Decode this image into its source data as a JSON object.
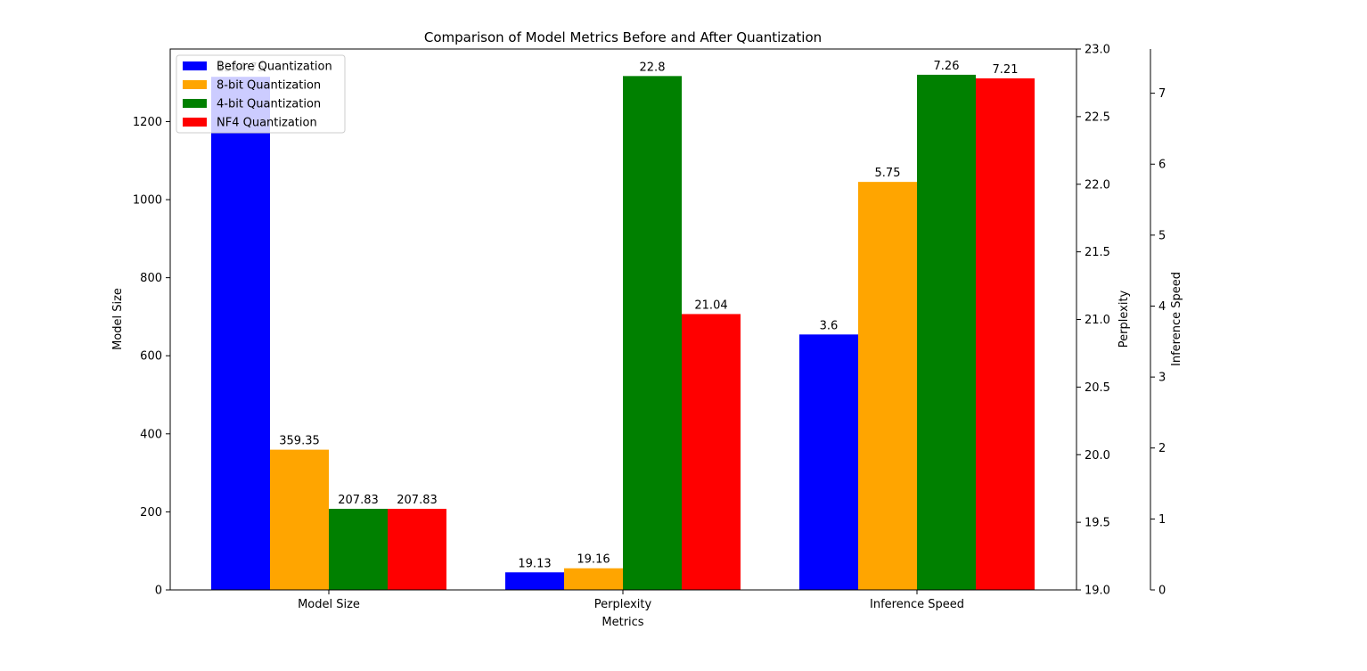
{
  "chart_data": {
    "type": "bar",
    "title": "Comparison of Model Metrics Before and After Quantization",
    "xlabel": "Metrics",
    "categories": [
      "Model Size",
      "Perplexity",
      "Inference Speed"
    ],
    "series": [
      {
        "name": "Before Quantization",
        "color": "#0000ff",
        "values": [
          1314.75,
          19.13,
          3.6
        ],
        "labels": [
          "1314.75",
          "19.13",
          "3.6"
        ]
      },
      {
        "name": "8-bit Quantization",
        "color": "#ffa500",
        "values": [
          359.35,
          19.16,
          5.75
        ],
        "labels": [
          "359.35",
          "19.16",
          "5.75"
        ]
      },
      {
        "name": "4-bit Quantization",
        "color": "#008000",
        "values": [
          207.83,
          22.8,
          7.26
        ],
        "labels": [
          "207.83",
          "22.8",
          "7.26"
        ]
      },
      {
        "name": "NF4 Quantization",
        "color": "#ff0000",
        "values": [
          207.83,
          21.04,
          7.21
        ],
        "labels": [
          "207.83",
          "21.04",
          "7.21"
        ]
      }
    ],
    "axes": {
      "left": {
        "label": "Model Size",
        "range": [
          0,
          1386
        ],
        "ticks": [
          0,
          200,
          400,
          600,
          800,
          1000,
          1200
        ],
        "tick_labels": [
          "0",
          "200",
          "400",
          "600",
          "800",
          "1000",
          "1200"
        ]
      },
      "right": {
        "label": "Perplexity",
        "range": [
          19.0,
          23.0
        ],
        "ticks": [
          19.0,
          19.5,
          20.0,
          20.5,
          21.0,
          21.5,
          22.0,
          22.5,
          23.0
        ],
        "tick_labels": [
          "19.0",
          "19.5",
          "20.0",
          "20.5",
          "21.0",
          "21.5",
          "22.0",
          "22.5",
          "23.0"
        ]
      },
      "far_right": {
        "label": "Inference Speed",
        "range": [
          0,
          7.623
        ],
        "ticks": [
          0,
          1,
          2,
          3,
          4,
          5,
          6,
          7
        ],
        "tick_labels": [
          "0",
          "1",
          "2",
          "3",
          "4",
          "5",
          "6",
          "7"
        ]
      }
    },
    "legend": {
      "position": "upper-left"
    },
    "grid": false
  }
}
